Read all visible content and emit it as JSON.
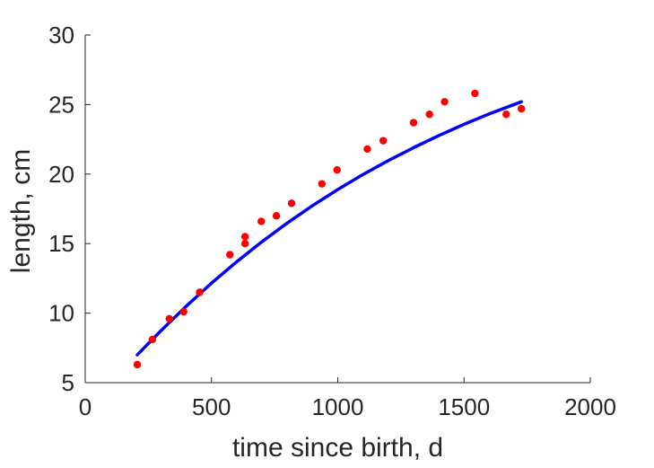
{
  "chart_data": {
    "type": "scatter",
    "title": "",
    "xlabel": "time since birth, d",
    "ylabel": "length, cm",
    "xlim": [
      0,
      2000
    ],
    "ylim": [
      5,
      30
    ],
    "xticks": [
      0,
      500,
      1000,
      1500,
      2000
    ],
    "yticks": [
      5,
      10,
      15,
      20,
      25,
      30
    ],
    "grid": false,
    "legend": "none",
    "colors": {
      "points": "#ff0000",
      "fit_line": "#0000ff",
      "axis": "#262626"
    },
    "series": [
      {
        "kind": "points",
        "x": [
          206,
          266,
          333,
          390,
          453,
          573,
          633,
          633,
          697,
          757,
          817,
          937,
          997,
          1117,
          1180,
          1300,
          1363,
          1423,
          1543,
          1667,
          1727
        ],
        "y": [
          6.3,
          8.1,
          9.6,
          10.1,
          11.5,
          14.2,
          15.0,
          15.5,
          16.6,
          17.0,
          17.9,
          19.3,
          20.3,
          21.8,
          22.4,
          23.7,
          24.3,
          25.2,
          25.8,
          24.3,
          24.7
        ]
      },
      {
        "kind": "line",
        "x": [
          206,
          300,
          400,
          500,
          600,
          700,
          800,
          900,
          1000,
          1100,
          1200,
          1300,
          1400,
          1500,
          1600,
          1727
        ],
        "y": [
          7.0,
          8.74,
          10.5,
          12.16,
          13.7,
          15.14,
          16.48,
          17.73,
          18.89,
          19.97,
          20.97,
          21.9,
          22.77,
          23.58,
          24.33,
          25.2
        ]
      }
    ]
  }
}
